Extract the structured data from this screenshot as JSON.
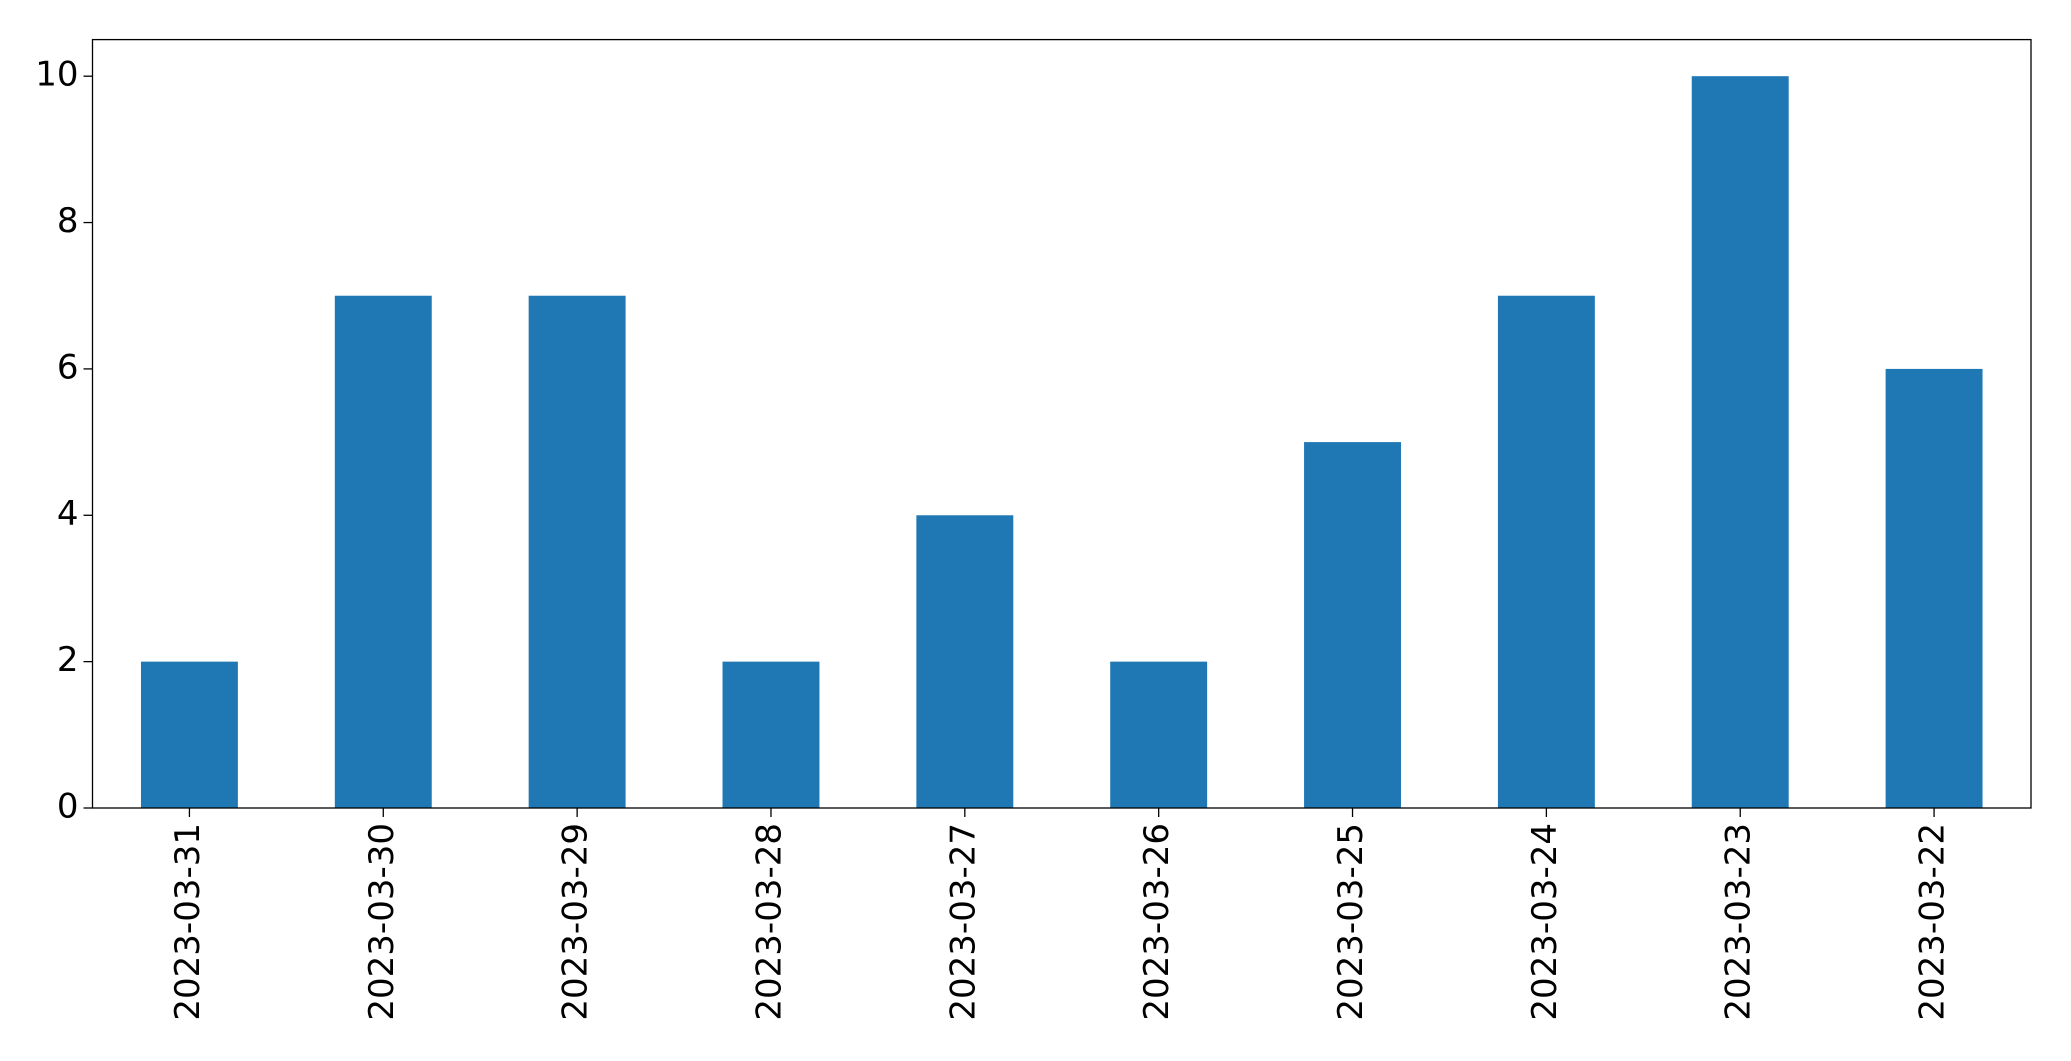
{
  "chart_data": {
    "type": "bar",
    "categories": [
      "2023-03-31",
      "2023-03-30",
      "2023-03-29",
      "2023-03-28",
      "2023-03-27",
      "2023-03-26",
      "2023-03-25",
      "2023-03-24",
      "2023-03-23",
      "2023-03-22"
    ],
    "values": [
      2,
      7,
      7,
      2,
      4,
      2,
      5,
      7,
      10,
      6
    ],
    "color": "#1f77b4",
    "ylim": [
      0,
      10.5
    ],
    "yticks": [
      0,
      2,
      4,
      6,
      8,
      10
    ],
    "grid": false
  }
}
